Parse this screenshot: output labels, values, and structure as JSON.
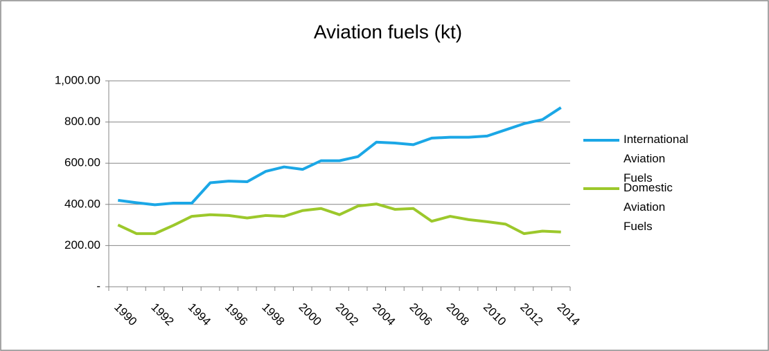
{
  "chart_data": {
    "type": "line",
    "title": "Aviation fuels (kt)",
    "categories": [
      "1990",
      null,
      "1992",
      null,
      "1994",
      null,
      "1996",
      null,
      "1998",
      null,
      "2000",
      null,
      "2002",
      null,
      "2004",
      null,
      "2006",
      null,
      "2008",
      null,
      "2010",
      null,
      "2012",
      null,
      "2014"
    ],
    "series": [
      {
        "name": "International Aviation Fuels",
        "color": "#1ba7e6",
        "values": [
          420,
          408,
          398,
          406,
          406,
          505,
          513,
          510,
          560,
          582,
          570,
          612,
          612,
          632,
          702,
          698,
          690,
          722,
          726,
          726,
          732,
          762,
          792,
          812,
          870
        ]
      },
      {
        "name": "Domestic Aviation Fuels",
        "color": "#9cc82b",
        "values": [
          300,
          258,
          258,
          298,
          342,
          350,
          346,
          334,
          346,
          342,
          370,
          380,
          350,
          392,
          402,
          376,
          380,
          318,
          342,
          326,
          316,
          304,
          258,
          270,
          266
        ]
      }
    ],
    "ylim": [
      0,
      1000
    ],
    "yticks": [
      {
        "value": 0,
        "label": "-"
      },
      {
        "value": 200,
        "label": "200.00"
      },
      {
        "value": 400,
        "label": "400.00"
      },
      {
        "value": 600,
        "label": "600.00"
      },
      {
        "value": 800,
        "label": "800.00"
      },
      {
        "value": 1000,
        "label": "1,000.00"
      }
    ],
    "grid": true,
    "legend": "right"
  }
}
